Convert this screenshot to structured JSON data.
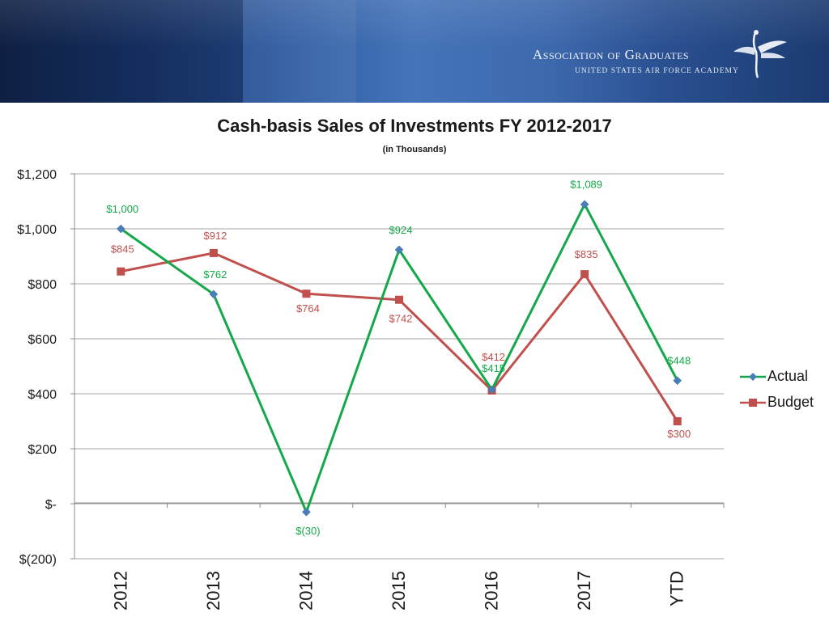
{
  "header": {
    "org_name": "Association of Graduates",
    "org_subtitle": "UNITED STATES AIR FORCE ACADEMY"
  },
  "colors": {
    "actual": "#14a84a",
    "budget": "#c0504d",
    "actual_marker": "#4a7ebb",
    "grid": "#a6a6a6"
  },
  "icons": {
    "logo": "falcon-emblem-icon"
  },
  "chart_data": {
    "type": "line",
    "title": "Cash-basis Sales of Investments FY 2012-2017",
    "subtitle": "(in Thousands)",
    "xlabel": "",
    "ylabel": "",
    "categories": [
      "2012",
      "2013",
      "2014",
      "2015",
      "2016",
      "2017",
      "YTD"
    ],
    "ylim": [
      -200,
      1200
    ],
    "yticks": [
      -200,
      0,
      200,
      400,
      600,
      800,
      1000,
      1200
    ],
    "ytick_labels": [
      "$(200)",
      "$-",
      "$200",
      "$400",
      "$600",
      "$800",
      "$1,000",
      "$1,200"
    ],
    "grid": true,
    "legend_position": "right",
    "series": [
      {
        "name": "Actual",
        "values": [
          1000,
          762,
          -30,
          924,
          415,
          1089,
          448
        ],
        "labels": [
          "$1,000",
          "$762",
          "$(30)",
          "$924",
          "$415",
          "$1,089",
          "$448"
        ],
        "marker": "diamond"
      },
      {
        "name": "Budget",
        "values": [
          845,
          912,
          764,
          742,
          412,
          835,
          300
        ],
        "labels": [
          "$845",
          "$912",
          "$764",
          "$742",
          "$412",
          "$835",
          "$300"
        ],
        "marker": "square"
      }
    ]
  }
}
